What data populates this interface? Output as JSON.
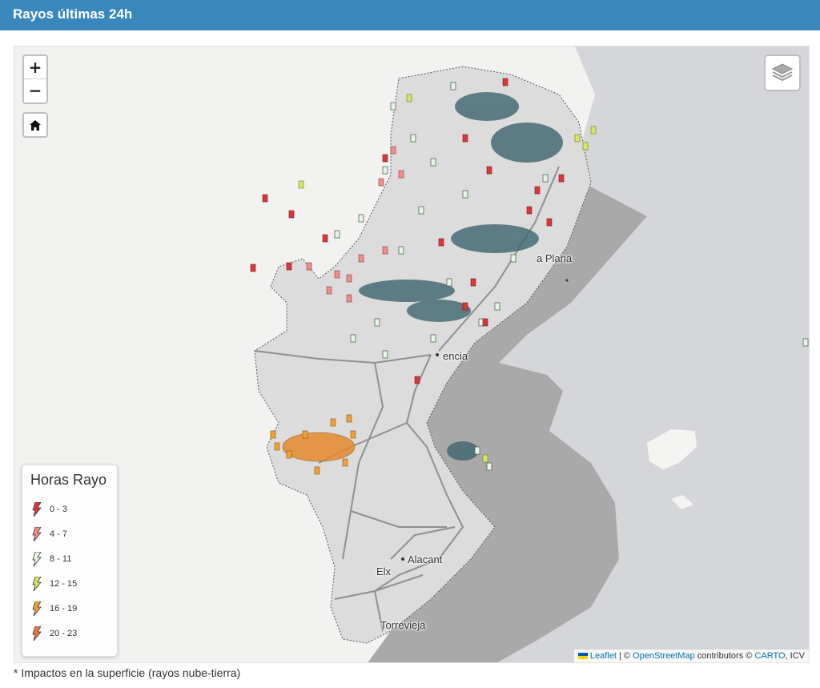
{
  "header": {
    "title": "Rayos últimas 24h"
  },
  "controls": {
    "zoom_in": "+",
    "zoom_out": "−",
    "home_icon": "home-icon",
    "layers_icon": "layers-icon"
  },
  "cities": {
    "castellon": "a Plana",
    "valencia": "encia",
    "alacant": "Alacant",
    "elx": "Elx",
    "torrevieja": "Torrevieja"
  },
  "legend": {
    "title": "Horas Rayo",
    "items": [
      {
        "label": "0 - 3",
        "color": "#d9383a"
      },
      {
        "label": "4 - 7",
        "color": "#ee8f8c"
      },
      {
        "label": "8 - 11",
        "color": "#e9f5e4"
      },
      {
        "label": "12 - 15",
        "color": "#d8e36a"
      },
      {
        "label": "16 - 19",
        "color": "#f0a23a"
      },
      {
        "label": "20 - 23",
        "color": "#ee7a3c"
      }
    ]
  },
  "attribution": {
    "leaflet": "Leaflet",
    "sep1": " | © ",
    "osm": "OpenStreetMap",
    "contrib": " contributors © ",
    "carto": "CARTO",
    "icv": ", ICV"
  },
  "footnote": "* Impactos en la superficie (rayos nube-tierra)",
  "colors": {
    "header": "#3a87bd",
    "sea_zone": "#a9a9a9",
    "sea": "#d4d6d9",
    "land": "#f2f2f0",
    "region": "#dcdcdc",
    "cluster": "#3e6470"
  }
}
